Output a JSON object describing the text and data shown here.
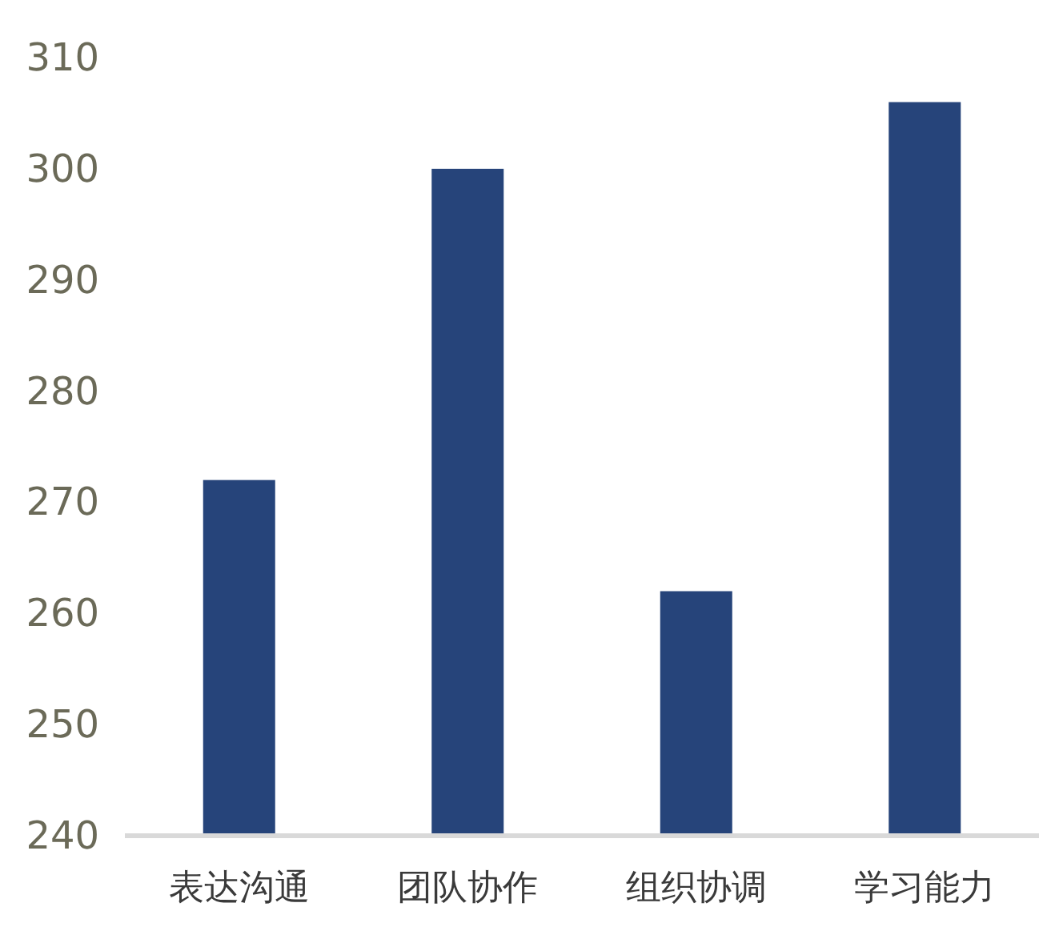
{
  "chart_data": {
    "type": "bar",
    "categories": [
      "表达沟通",
      "团队协作",
      "组织协调",
      "学习能力"
    ],
    "values": [
      272,
      300,
      262,
      306
    ],
    "color": "#26447a",
    "ylim": [
      240,
      310
    ],
    "yticks": [
      240,
      250,
      260,
      270,
      280,
      290,
      300,
      310
    ],
    "grid": false
  }
}
